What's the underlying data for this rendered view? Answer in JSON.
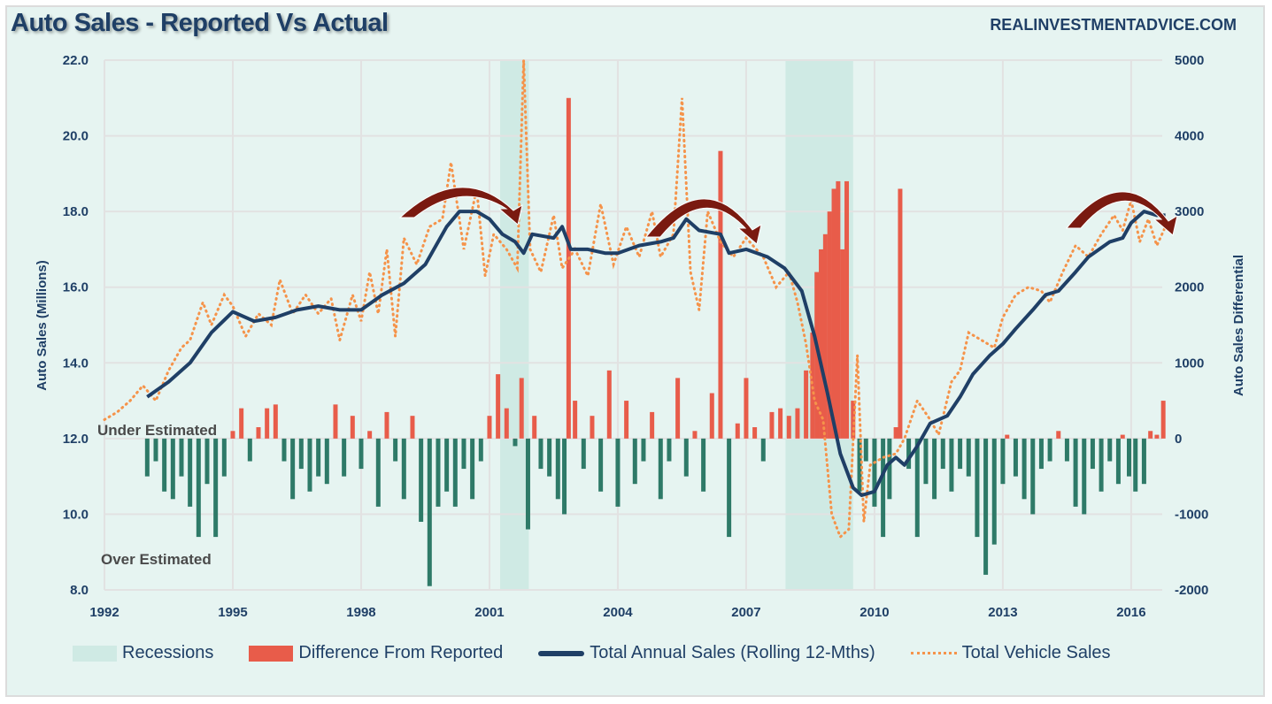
{
  "title": "Auto Sales - Reported Vs Actual",
  "watermark": "REALINVESTMENTADVICE.COM",
  "annotations": {
    "under": "Under Estimated",
    "over": "Over Estimated"
  },
  "colors": {
    "background": "#e6f4f1",
    "recession": "#cfeae4",
    "diff_positive": "#e85c4a",
    "diff_negative": "#2e7a68",
    "rolling": "#1f3f66",
    "vehicle": "#f5934a",
    "arrow": "#7a1a10"
  },
  "chart_data": {
    "type": "bar+line",
    "title": "Auto Sales - Reported Vs Actual",
    "xlabel": "",
    "ylabel_left": "Auto Sales (Millions)",
    "ylabel_right": "Auto Sales Differential",
    "xlim": [
      1992,
      2016.8
    ],
    "ylim_left": [
      8,
      22
    ],
    "ylim_right": [
      -2000,
      5000
    ],
    "x_ticks": [
      "1992",
      "1995",
      "1998",
      "2001",
      "2004",
      "2007",
      "2010",
      "2013",
      "2016"
    ],
    "y_left_ticks": [
      "8.0",
      "10.0",
      "12.0",
      "14.0",
      "16.0",
      "18.0",
      "20.0",
      "22.0"
    ],
    "y_right_ticks": [
      "-2000",
      "-1000",
      "0",
      "1000",
      "2000",
      "3000",
      "4000",
      "5000"
    ],
    "grid": true,
    "legend_placement": "bottom",
    "legend": [
      "Recessions",
      "Difference From Reported",
      "Total Annual Sales (Rolling 12-Mths)",
      "Total Vehicle Sales"
    ],
    "recessions": [
      [
        2001.25,
        2001.92
      ],
      [
        2007.92,
        2009.5
      ]
    ],
    "difference_from_reported": [
      [
        1993.0,
        -500
      ],
      [
        1993.2,
        -300
      ],
      [
        1993.4,
        -700
      ],
      [
        1993.6,
        -800
      ],
      [
        1993.8,
        -500
      ],
      [
        1994.0,
        -900
      ],
      [
        1994.2,
        -1300
      ],
      [
        1994.4,
        -600
      ],
      [
        1994.6,
        -1300
      ],
      [
        1994.8,
        -500
      ],
      [
        1995.0,
        100
      ],
      [
        1995.2,
        400
      ],
      [
        1995.4,
        -300
      ],
      [
        1995.6,
        150
      ],
      [
        1995.8,
        400
      ],
      [
        1996.0,
        450
      ],
      [
        1996.2,
        -300
      ],
      [
        1996.4,
        -800
      ],
      [
        1996.6,
        -400
      ],
      [
        1996.8,
        -700
      ],
      [
        1997.0,
        -500
      ],
      [
        1997.2,
        -600
      ],
      [
        1997.4,
        450
      ],
      [
        1997.6,
        -500
      ],
      [
        1997.8,
        300
      ],
      [
        1998.0,
        -400
      ],
      [
        1998.2,
        100
      ],
      [
        1998.4,
        -900
      ],
      [
        1998.6,
        350
      ],
      [
        1998.8,
        -300
      ],
      [
        1999.0,
        -800
      ],
      [
        1999.2,
        300
      ],
      [
        1999.4,
        -1100
      ],
      [
        1999.6,
        -1950
      ],
      [
        1999.8,
        -900
      ],
      [
        2000.0,
        -700
      ],
      [
        2000.2,
        -900
      ],
      [
        2000.4,
        -400
      ],
      [
        2000.6,
        -800
      ],
      [
        2000.8,
        -300
      ],
      [
        2001.0,
        300
      ],
      [
        2001.2,
        850
      ],
      [
        2001.4,
        400
      ],
      [
        2001.6,
        -100
      ],
      [
        2001.75,
        800
      ],
      [
        2001.9,
        -1200
      ],
      [
        2002.05,
        300
      ],
      [
        2002.2,
        -400
      ],
      [
        2002.4,
        -500
      ],
      [
        2002.6,
        -800
      ],
      [
        2002.75,
        -1000
      ],
      [
        2002.85,
        4500
      ],
      [
        2003.0,
        500
      ],
      [
        2003.2,
        -400
      ],
      [
        2003.4,
        300
      ],
      [
        2003.6,
        -700
      ],
      [
        2003.8,
        900
      ],
      [
        2004.0,
        -900
      ],
      [
        2004.2,
        500
      ],
      [
        2004.4,
        -600
      ],
      [
        2004.6,
        -300
      ],
      [
        2004.8,
        350
      ],
      [
        2005.0,
        -800
      ],
      [
        2005.2,
        -300
      ],
      [
        2005.4,
        800
      ],
      [
        2005.6,
        -500
      ],
      [
        2005.8,
        100
      ],
      [
        2006.0,
        -700
      ],
      [
        2006.2,
        600
      ],
      [
        2006.4,
        3800
      ],
      [
        2006.6,
        -1300
      ],
      [
        2006.8,
        200
      ],
      [
        2007.0,
        800
      ],
      [
        2007.2,
        150
      ],
      [
        2007.4,
        -300
      ],
      [
        2007.6,
        350
      ],
      [
        2007.8,
        400
      ],
      [
        2008.0,
        300
      ],
      [
        2008.2,
        400
      ],
      [
        2008.4,
        900
      ],
      [
        2008.55,
        1400
      ],
      [
        2008.65,
        2200
      ],
      [
        2008.75,
        2500
      ],
      [
        2008.85,
        2700
      ],
      [
        2008.95,
        3000
      ],
      [
        2009.05,
        3300
      ],
      [
        2009.15,
        3400
      ],
      [
        2009.25,
        2500
      ],
      [
        2009.35,
        3400
      ],
      [
        2009.5,
        500
      ],
      [
        2009.65,
        -700
      ],
      [
        2009.8,
        -300
      ],
      [
        2010.0,
        -900
      ],
      [
        2010.2,
        -1300
      ],
      [
        2010.35,
        -800
      ],
      [
        2010.5,
        150
      ],
      [
        2010.6,
        3300
      ],
      [
        2010.8,
        -400
      ],
      [
        2011.0,
        -1300
      ],
      [
        2011.2,
        -600
      ],
      [
        2011.4,
        -800
      ],
      [
        2011.6,
        -400
      ],
      [
        2011.8,
        -700
      ],
      [
        2012.0,
        -400
      ],
      [
        2012.2,
        -500
      ],
      [
        2012.4,
        -1300
      ],
      [
        2012.6,
        -1800
      ],
      [
        2012.8,
        -1400
      ],
      [
        2013.0,
        -600
      ],
      [
        2013.1,
        50
      ],
      [
        2013.3,
        -500
      ],
      [
        2013.5,
        -800
      ],
      [
        2013.7,
        -1000
      ],
      [
        2013.9,
        -400
      ],
      [
        2014.1,
        -300
      ],
      [
        2014.3,
        100
      ],
      [
        2014.5,
        -300
      ],
      [
        2014.7,
        -900
      ],
      [
        2014.9,
        -1000
      ],
      [
        2015.1,
        -400
      ],
      [
        2015.3,
        -700
      ],
      [
        2015.5,
        -300
      ],
      [
        2015.7,
        -600
      ],
      [
        2015.8,
        50
      ],
      [
        2015.95,
        -500
      ],
      [
        2016.1,
        -700
      ],
      [
        2016.3,
        -600
      ],
      [
        2016.45,
        100
      ],
      [
        2016.6,
        50
      ],
      [
        2016.75,
        500
      ]
    ],
    "total_annual_sales_rolling": [
      [
        1993.0,
        13.1
      ],
      [
        1993.5,
        13.5
      ],
      [
        1994.0,
        14.0
      ],
      [
        1994.5,
        14.8
      ],
      [
        1995.0,
        15.35
      ],
      [
        1995.5,
        15.1
      ],
      [
        1996.0,
        15.2
      ],
      [
        1996.5,
        15.4
      ],
      [
        1997.0,
        15.5
      ],
      [
        1997.5,
        15.4
      ],
      [
        1998.0,
        15.4
      ],
      [
        1998.5,
        15.8
      ],
      [
        1999.0,
        16.1
      ],
      [
        1999.5,
        16.6
      ],
      [
        2000.0,
        17.6
      ],
      [
        2000.3,
        18.0
      ],
      [
        2000.7,
        18.0
      ],
      [
        2001.0,
        17.8
      ],
      [
        2001.3,
        17.4
      ],
      [
        2001.6,
        17.2
      ],
      [
        2001.8,
        16.9
      ],
      [
        2002.0,
        17.4
      ],
      [
        2002.5,
        17.3
      ],
      [
        2002.7,
        17.6
      ],
      [
        2002.9,
        17.0
      ],
      [
        2003.3,
        17.0
      ],
      [
        2003.7,
        16.9
      ],
      [
        2004.0,
        16.9
      ],
      [
        2004.5,
        17.1
      ],
      [
        2005.0,
        17.2
      ],
      [
        2005.3,
        17.3
      ],
      [
        2005.6,
        17.8
      ],
      [
        2005.9,
        17.5
      ],
      [
        2006.4,
        17.4
      ],
      [
        2006.6,
        16.9
      ],
      [
        2007.0,
        17.0
      ],
      [
        2007.5,
        16.8
      ],
      [
        2007.9,
        16.5
      ],
      [
        2008.3,
        15.9
      ],
      [
        2008.6,
        14.7
      ],
      [
        2008.9,
        13.2
      ],
      [
        2009.2,
        11.6
      ],
      [
        2009.5,
        10.7
      ],
      [
        2009.7,
        10.5
      ],
      [
        2010.0,
        10.6
      ],
      [
        2010.3,
        11.3
      ],
      [
        2010.5,
        11.5
      ],
      [
        2010.7,
        11.3
      ],
      [
        2011.0,
        11.8
      ],
      [
        2011.3,
        12.4
      ],
      [
        2011.7,
        12.6
      ],
      [
        2012.0,
        13.1
      ],
      [
        2012.3,
        13.7
      ],
      [
        2012.7,
        14.2
      ],
      [
        2013.0,
        14.5
      ],
      [
        2013.3,
        14.9
      ],
      [
        2013.7,
        15.4
      ],
      [
        2014.0,
        15.8
      ],
      [
        2014.3,
        15.9
      ],
      [
        2014.7,
        16.4
      ],
      [
        2015.0,
        16.8
      ],
      [
        2015.5,
        17.2
      ],
      [
        2015.8,
        17.3
      ],
      [
        2016.0,
        17.7
      ],
      [
        2016.3,
        18.0
      ],
      [
        2016.6,
        17.9
      ],
      [
        2016.8,
        17.9
      ]
    ],
    "total_vehicle_sales": [
      [
        1992.0,
        12.5
      ],
      [
        1992.3,
        12.7
      ],
      [
        1992.6,
        13.0
      ],
      [
        1992.9,
        13.4
      ],
      [
        1993.2,
        13.0
      ],
      [
        1993.5,
        13.8
      ],
      [
        1993.8,
        14.4
      ],
      [
        1994.0,
        14.6
      ],
      [
        1994.3,
        15.6
      ],
      [
        1994.5,
        15.0
      ],
      [
        1994.8,
        15.8
      ],
      [
        1995.0,
        15.5
      ],
      [
        1995.3,
        14.7
      ],
      [
        1995.6,
        15.3
      ],
      [
        1995.9,
        15.0
      ],
      [
        1996.1,
        16.2
      ],
      [
        1996.4,
        15.3
      ],
      [
        1996.7,
        15.8
      ],
      [
        1997.0,
        15.3
      ],
      [
        1997.3,
        15.7
      ],
      [
        1997.5,
        14.6
      ],
      [
        1997.8,
        15.8
      ],
      [
        1998.0,
        15.1
      ],
      [
        1998.2,
        16.4
      ],
      [
        1998.4,
        15.3
      ],
      [
        1998.6,
        17.0
      ],
      [
        1998.8,
        14.7
      ],
      [
        1999.0,
        17.3
      ],
      [
        1999.3,
        16.6
      ],
      [
        1999.6,
        17.6
      ],
      [
        1999.9,
        17.8
      ],
      [
        2000.1,
        19.3
      ],
      [
        2000.4,
        17.0
      ],
      [
        2000.7,
        18.6
      ],
      [
        2000.9,
        16.3
      ],
      [
        2001.1,
        17.4
      ],
      [
        2001.4,
        17.0
      ],
      [
        2001.65,
        16.5
      ],
      [
        2001.8,
        22.0
      ],
      [
        2001.95,
        17.0
      ],
      [
        2002.2,
        16.4
      ],
      [
        2002.5,
        17.9
      ],
      [
        2002.7,
        16.5
      ],
      [
        2003.0,
        17.0
      ],
      [
        2003.3,
        16.3
      ],
      [
        2003.6,
        18.2
      ],
      [
        2003.9,
        16.6
      ],
      [
        2004.2,
        17.6
      ],
      [
        2004.5,
        16.8
      ],
      [
        2004.8,
        18.0
      ],
      [
        2005.0,
        16.8
      ],
      [
        2005.3,
        17.4
      ],
      [
        2005.5,
        21.0
      ],
      [
        2005.7,
        16.4
      ],
      [
        2005.9,
        15.4
      ],
      [
        2006.1,
        18.0
      ],
      [
        2006.4,
        17.2
      ],
      [
        2006.7,
        16.8
      ],
      [
        2007.0,
        17.3
      ],
      [
        2007.4,
        16.8
      ],
      [
        2007.7,
        16.0
      ],
      [
        2008.0,
        16.4
      ],
      [
        2008.2,
        15.6
      ],
      [
        2008.4,
        14.5
      ],
      [
        2008.6,
        13.0
      ],
      [
        2008.8,
        12.5
      ],
      [
        2009.0,
        10.0
      ],
      [
        2009.2,
        9.4
      ],
      [
        2009.4,
        9.6
      ],
      [
        2009.6,
        14.2
      ],
      [
        2009.75,
        9.8
      ],
      [
        2009.9,
        11.3
      ],
      [
        2010.2,
        11.5
      ],
      [
        2010.5,
        11.6
      ],
      [
        2010.7,
        12.0
      ],
      [
        2011.0,
        13.0
      ],
      [
        2011.3,
        12.5
      ],
      [
        2011.5,
        12.1
      ],
      [
        2011.8,
        13.5
      ],
      [
        2012.0,
        13.8
      ],
      [
        2012.2,
        14.8
      ],
      [
        2012.5,
        14.6
      ],
      [
        2012.8,
        14.4
      ],
      [
        2013.0,
        15.2
      ],
      [
        2013.3,
        15.8
      ],
      [
        2013.6,
        16.0
      ],
      [
        2013.9,
        15.9
      ],
      [
        2014.1,
        15.6
      ],
      [
        2014.4,
        16.4
      ],
      [
        2014.7,
        17.1
      ],
      [
        2015.0,
        16.8
      ],
      [
        2015.3,
        17.4
      ],
      [
        2015.6,
        17.9
      ],
      [
        2015.8,
        17.5
      ],
      [
        2016.0,
        18.3
      ],
      [
        2016.2,
        17.2
      ],
      [
        2016.4,
        17.8
      ],
      [
        2016.6,
        17.1
      ],
      [
        2016.8,
        17.6
      ]
    ],
    "arrows_at_peaks": [
      "2000",
      "2006",
      "2016"
    ]
  }
}
